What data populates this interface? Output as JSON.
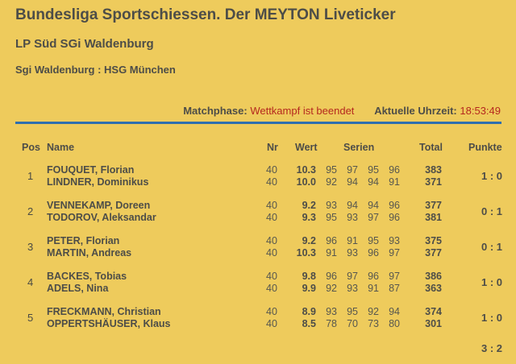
{
  "header": {
    "title": "Bundesliga Sportschiessen. Der MEYTON Liveticker",
    "subtitle": "LP Süd SGi Waldenburg",
    "match": "Sgi Waldenburg : HSG München"
  },
  "status": {
    "phase_label": "Matchphase:",
    "phase_value": "Wettkampf ist beendet",
    "time_label": "Aktuelle Uhrzeit:",
    "time_value": "18:53:49"
  },
  "colors": {
    "background": "#eecb5c",
    "accent_rule": "#2f6fae",
    "status_value": "#b5281f"
  },
  "table": {
    "headers": {
      "pos": "Pos",
      "name": "Name",
      "nr": "Nr",
      "wert": "Wert",
      "serien": "Serien",
      "total": "Total",
      "punkte": "Punkte"
    },
    "rows": [
      {
        "pos": "1",
        "points": "1 : 0",
        "shooters": [
          {
            "name": "FOUQUET, Florian",
            "nr": "40",
            "wert": "10.3",
            "serien": [
              "95",
              "97",
              "95",
              "96"
            ],
            "total": "383"
          },
          {
            "name": "LINDNER, Dominikus",
            "nr": "40",
            "wert": "10.0",
            "serien": [
              "92",
              "94",
              "94",
              "91"
            ],
            "total": "371"
          }
        ]
      },
      {
        "pos": "2",
        "points": "0 : 1",
        "shooters": [
          {
            "name": "VENNEKAMP, Doreen",
            "nr": "40",
            "wert": "9.2",
            "serien": [
              "93",
              "94",
              "94",
              "96"
            ],
            "total": "377"
          },
          {
            "name": "TODOROV, Aleksandar",
            "nr": "40",
            "wert": "9.3",
            "serien": [
              "95",
              "93",
              "97",
              "96"
            ],
            "total": "381"
          }
        ]
      },
      {
        "pos": "3",
        "points": "0 : 1",
        "shooters": [
          {
            "name": "PETER, Florian",
            "nr": "40",
            "wert": "9.2",
            "serien": [
              "96",
              "91",
              "95",
              "93"
            ],
            "total": "375"
          },
          {
            "name": "MARTIN, Andreas",
            "nr": "40",
            "wert": "10.3",
            "serien": [
              "91",
              "93",
              "96",
              "97"
            ],
            "total": "377"
          }
        ]
      },
      {
        "pos": "4",
        "points": "1 : 0",
        "shooters": [
          {
            "name": "BACKES, Tobias",
            "nr": "40",
            "wert": "9.8",
            "serien": [
              "96",
              "97",
              "96",
              "97"
            ],
            "total": "386"
          },
          {
            "name": "ADELS, Nina",
            "nr": "40",
            "wert": "9.9",
            "serien": [
              "92",
              "93",
              "91",
              "87"
            ],
            "total": "363"
          }
        ]
      },
      {
        "pos": "5",
        "points": "1 : 0",
        "shooters": [
          {
            "name": "FRECKMANN, Christian",
            "nr": "40",
            "wert": "8.9",
            "serien": [
              "93",
              "95",
              "92",
              "94"
            ],
            "total": "374"
          },
          {
            "name": "OPPERTSHÄUSER, Klaus",
            "nr": "40",
            "wert": "8.5",
            "serien": [
              "78",
              "70",
              "73",
              "80"
            ],
            "total": "301"
          }
        ]
      }
    ],
    "final_score": "3 : 2"
  }
}
